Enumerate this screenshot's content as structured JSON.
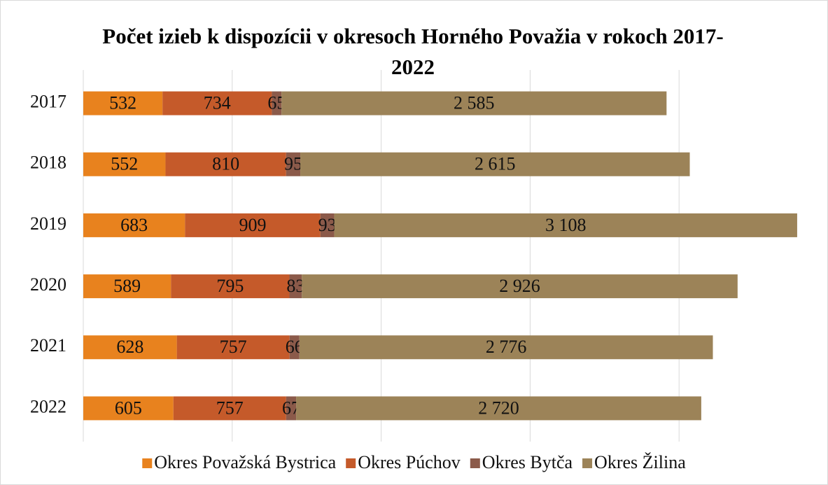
{
  "chart_data": {
    "type": "stacked_bar_horizontal",
    "title": "Počet izieb k dispozícii v okresoch Horného Považia v rokoch 2017-2022",
    "categories": [
      "2017",
      "2018",
      "2019",
      "2020",
      "2021",
      "2022"
    ],
    "series": [
      {
        "name": "Okres Považská Bystrica",
        "color": "#e8821e",
        "values": [
          532,
          552,
          683,
          589,
          628,
          605
        ]
      },
      {
        "name": "Okres Púchov",
        "color": "#c55a2a",
        "values": [
          734,
          810,
          909,
          795,
          757,
          757
        ]
      },
      {
        "name": "Okres Bytča",
        "color": "#8b5a4a",
        "values": [
          65,
          95,
          93,
          83,
          66,
          67
        ]
      },
      {
        "name": "Okres Žilina",
        "color": "#9c8358",
        "values": [
          2585,
          2615,
          3108,
          2926,
          2776,
          2720
        ],
        "value_labels": [
          "2 585",
          "2 615",
          "3 108",
          "2 926",
          "2 776",
          "2 720"
        ]
      }
    ],
    "xlim": [
      0,
      5000
    ],
    "xticks": [
      0,
      1000,
      2000,
      3000,
      4000
    ],
    "grid": true,
    "legend": "bottom"
  }
}
